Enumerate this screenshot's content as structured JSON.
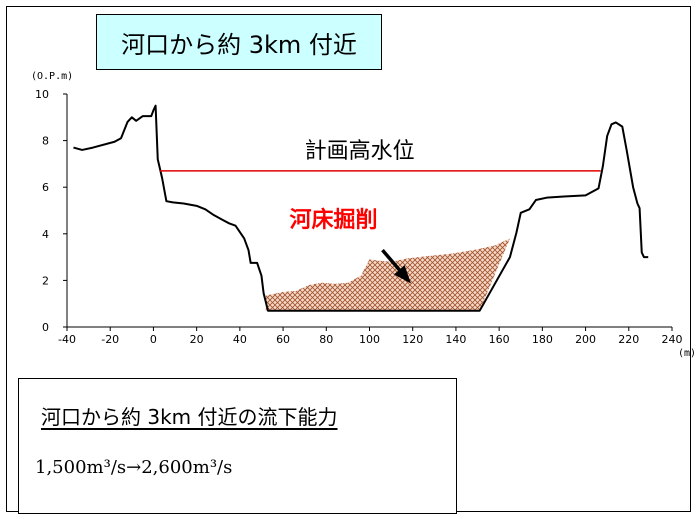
{
  "title": "河口から約 3km 付近",
  "chart_data": {
    "type": "area",
    "y_unit": "(O.P.m)",
    "x_unit": "(m)",
    "xlim": [
      -40,
      240
    ],
    "ylim": [
      0,
      10
    ],
    "x_ticks": [
      -40,
      -20,
      0,
      20,
      40,
      60,
      80,
      100,
      120,
      140,
      160,
      180,
      200,
      220,
      240
    ],
    "y_ticks": [
      0,
      2,
      4,
      6,
      8,
      10
    ],
    "cross_section": [
      [
        -37,
        7.7
      ],
      [
        -33,
        7.6
      ],
      [
        -28,
        7.7
      ],
      [
        -18,
        7.95
      ],
      [
        -15,
        8.1
      ],
      [
        -12,
        8.8
      ],
      [
        -10,
        9.0
      ],
      [
        -8,
        8.85
      ],
      [
        -5,
        9.05
      ],
      [
        -1,
        9.05
      ],
      [
        0,
        9.3
      ],
      [
        1,
        9.5
      ],
      [
        2,
        7.2
      ],
      [
        4,
        6.4
      ],
      [
        6,
        5.4
      ],
      [
        9,
        5.35
      ],
      [
        14,
        5.3
      ],
      [
        20,
        5.2
      ],
      [
        24,
        5.05
      ],
      [
        28,
        4.8
      ],
      [
        32,
        4.6
      ],
      [
        35,
        4.45
      ],
      [
        38,
        4.35
      ],
      [
        42,
        3.8
      ],
      [
        44,
        3.3
      ],
      [
        45,
        2.75
      ],
      [
        48,
        2.75
      ],
      [
        50,
        2.2
      ],
      [
        51,
        1.45
      ],
      [
        53,
        0.7
      ],
      [
        151,
        0.7
      ],
      [
        165,
        3.0
      ],
      [
        168,
        4.05
      ],
      [
        170,
        4.9
      ],
      [
        174,
        5.05
      ],
      [
        177,
        5.45
      ],
      [
        182,
        5.55
      ],
      [
        190,
        5.6
      ],
      [
        200,
        5.65
      ],
      [
        206,
        5.95
      ],
      [
        208,
        6.9
      ],
      [
        210,
        8.2
      ],
      [
        212,
        8.7
      ],
      [
        214,
        8.78
      ],
      [
        217,
        8.6
      ],
      [
        219,
        7.6
      ],
      [
        222,
        6.0
      ],
      [
        224,
        5.3
      ],
      [
        225,
        5.1
      ],
      [
        226,
        3.2
      ],
      [
        227,
        3.0
      ],
      [
        229,
        3.0
      ]
    ],
    "excavation_top": [
      [
        52,
        1.35
      ],
      [
        60,
        1.5
      ],
      [
        66,
        1.55
      ],
      [
        72,
        1.8
      ],
      [
        78,
        1.9
      ],
      [
        84,
        1.85
      ],
      [
        90,
        1.9
      ],
      [
        96,
        2.2
      ],
      [
        100,
        2.9
      ],
      [
        104,
        2.85
      ],
      [
        110,
        2.8
      ],
      [
        118,
        2.95
      ],
      [
        128,
        3.05
      ],
      [
        138,
        3.15
      ],
      [
        148,
        3.3
      ],
      [
        158,
        3.5
      ],
      [
        165,
        3.8
      ]
    ],
    "planned_high_water_level": 6.7,
    "planned_high_water_range": [
      3,
      207
    ],
    "labels": {
      "planned_high_water": "計画高水位",
      "excavation": "河床掘削"
    },
    "colors": {
      "water_level": "#e00000",
      "excavation_label": "#ff0000",
      "hatch": "#a0522d"
    },
    "arrow": {
      "from": [
        106,
        3.3
      ],
      "to": [
        118,
        2.0
      ]
    }
  },
  "info": {
    "heading": "河口から約 3km 付近の流下能力",
    "capacity_before": "1,500m³/s",
    "arrow_sep": "→",
    "capacity_after": "2,600m³/s"
  }
}
